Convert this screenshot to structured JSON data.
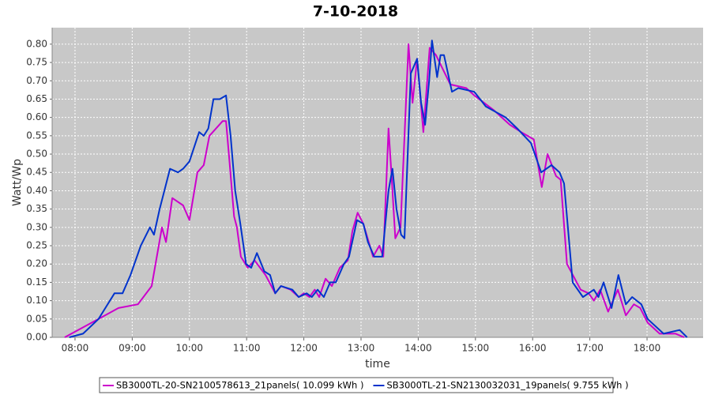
{
  "chart_data": {
    "type": "line",
    "title": "7-10-2018",
    "x_label": "time",
    "y_label": "Watt/Wp",
    "xlim": [
      7.6,
      18.98
    ],
    "ylim": [
      0,
      0.845
    ],
    "xticks": [
      {
        "value": 8,
        "label": "08:00"
      },
      {
        "value": 9,
        "label": "09:00"
      },
      {
        "value": 10,
        "label": "10:00"
      },
      {
        "value": 11,
        "label": "11:00"
      },
      {
        "value": 12,
        "label": "12:00"
      },
      {
        "value": 13,
        "label": "13:00"
      },
      {
        "value": 14,
        "label": "14:00"
      },
      {
        "value": 15,
        "label": "15:00"
      },
      {
        "value": 16,
        "label": "16:00"
      },
      {
        "value": 17,
        "label": "17:00"
      },
      {
        "value": 18,
        "label": "18:00"
      }
    ],
    "yticks": [
      {
        "value": 0,
        "label": "0.00"
      },
      {
        "value": 0.05,
        "label": "0.05"
      },
      {
        "value": 0.1,
        "label": "0.10"
      },
      {
        "value": 0.15,
        "label": "0.15"
      },
      {
        "value": 0.2,
        "label": "0.20"
      },
      {
        "value": 0.25,
        "label": "0.25"
      },
      {
        "value": 0.3,
        "label": "0.30"
      },
      {
        "value": 0.35,
        "label": "0.35"
      },
      {
        "value": 0.4,
        "label": "0.40"
      },
      {
        "value": 0.45,
        "label": "0.45"
      },
      {
        "value": 0.5,
        "label": "0.50"
      },
      {
        "value": 0.55,
        "label": "0.55"
      },
      {
        "value": 0.6,
        "label": "0.60"
      },
      {
        "value": 0.65,
        "label": "0.65"
      },
      {
        "value": 0.7,
        "label": "0.70"
      },
      {
        "value": 0.75,
        "label": "0.75"
      },
      {
        "value": 0.8,
        "label": "0.80"
      }
    ],
    "grid": true,
    "series": [
      {
        "name": "SB3000TL-20-SN2100578613_21panels( 10.099 kWh )",
        "color": "#cc00cc",
        "x": [
          7.82,
          8.41,
          8.76,
          9.1,
          9.34,
          9.52,
          9.59,
          9.7,
          9.89,
          10.0,
          10.14,
          10.25,
          10.35,
          10.58,
          10.64,
          10.69,
          10.78,
          10.83,
          10.9,
          11.02,
          11.14,
          11.33,
          11.5,
          11.6,
          11.77,
          11.91,
          12.0,
          12.1,
          12.19,
          12.27,
          12.38,
          12.49,
          12.63,
          12.77,
          12.85,
          12.94,
          13.04,
          13.21,
          13.32,
          13.39,
          13.48,
          13.53,
          13.6,
          13.69,
          13.83,
          13.9,
          13.98,
          14.09,
          14.2,
          14.31,
          14.56,
          14.84,
          14.98,
          15.32,
          15.6,
          15.8,
          16.02,
          16.16,
          16.26,
          16.41,
          16.49,
          16.6,
          16.84,
          16.98,
          17.07,
          17.18,
          17.32,
          17.49,
          17.63,
          17.77,
          17.88,
          18.01,
          18.22,
          18.5,
          18.65
        ],
        "values": [
          0,
          0.05,
          0.08,
          0.09,
          0.14,
          0.3,
          0.26,
          0.38,
          0.36,
          0.32,
          0.45,
          0.47,
          0.55,
          0.59,
          0.59,
          0.5,
          0.33,
          0.3,
          0.22,
          0.19,
          0.21,
          0.17,
          0.12,
          0.14,
          0.13,
          0.11,
          0.12,
          0.11,
          0.13,
          0.11,
          0.16,
          0.14,
          0.19,
          0.21,
          0.29,
          0.34,
          0.31,
          0.22,
          0.25,
          0.22,
          0.57,
          0.45,
          0.27,
          0.3,
          0.8,
          0.64,
          0.76,
          0.56,
          0.79,
          0.77,
          0.69,
          0.68,
          0.66,
          0.62,
          0.58,
          0.56,
          0.54,
          0.41,
          0.5,
          0.44,
          0.43,
          0.2,
          0.13,
          0.12,
          0.1,
          0.13,
          0.07,
          0.13,
          0.06,
          0.09,
          0.08,
          0.04,
          0.01,
          0.01,
          0
        ]
      },
      {
        "name": "SB3000TL-21-SN2130032031_19panels( 9.755 kWh )",
        "color": "#0033cc",
        "x": [
          7.9,
          8.14,
          8.41,
          8.69,
          8.83,
          8.97,
          9.15,
          9.31,
          9.38,
          9.48,
          9.66,
          9.8,
          9.89,
          10.0,
          10.17,
          10.25,
          10.33,
          10.42,
          10.53,
          10.64,
          10.72,
          10.8,
          10.89,
          10.99,
          11.08,
          11.18,
          11.31,
          11.41,
          11.5,
          11.6,
          11.8,
          11.91,
          12.05,
          12.14,
          12.24,
          12.35,
          12.46,
          12.56,
          12.7,
          12.79,
          12.93,
          13.04,
          13.12,
          13.23,
          13.37,
          13.48,
          13.55,
          13.62,
          13.7,
          13.76,
          13.87,
          13.98,
          14.05,
          14.12,
          14.19,
          14.24,
          14.33,
          14.39,
          14.45,
          14.59,
          14.7,
          14.98,
          15.18,
          15.53,
          15.73,
          15.97,
          16.15,
          16.33,
          16.47,
          16.55,
          16.7,
          16.88,
          17.07,
          17.15,
          17.24,
          17.38,
          17.5,
          17.63,
          17.74,
          17.9,
          18.01,
          18.29,
          18.57,
          18.7
        ],
        "values": [
          0,
          0.01,
          0.05,
          0.12,
          0.12,
          0.17,
          0.25,
          0.3,
          0.28,
          0.35,
          0.46,
          0.45,
          0.46,
          0.48,
          0.56,
          0.55,
          0.57,
          0.65,
          0.65,
          0.66,
          0.55,
          0.4,
          0.31,
          0.2,
          0.19,
          0.23,
          0.18,
          0.17,
          0.12,
          0.14,
          0.13,
          0.11,
          0.12,
          0.11,
          0.13,
          0.11,
          0.15,
          0.15,
          0.2,
          0.22,
          0.32,
          0.31,
          0.26,
          0.22,
          0.22,
          0.4,
          0.46,
          0.35,
          0.28,
          0.27,
          0.72,
          0.76,
          0.64,
          0.58,
          0.7,
          0.81,
          0.71,
          0.77,
          0.77,
          0.67,
          0.68,
          0.67,
          0.63,
          0.6,
          0.57,
          0.53,
          0.45,
          0.47,
          0.45,
          0.42,
          0.15,
          0.11,
          0.13,
          0.11,
          0.15,
          0.08,
          0.17,
          0.09,
          0.11,
          0.09,
          0.05,
          0.01,
          0.02,
          0
        ]
      }
    ]
  }
}
